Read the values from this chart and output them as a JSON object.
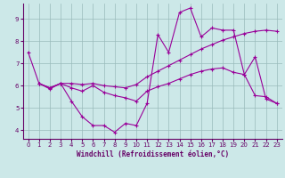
{
  "xlabel": "Windchill (Refroidissement éolien,°C)",
  "background_color": "#cce8e8",
  "line_color": "#990099",
  "grid_color": "#99bbbb",
  "xlim": [
    -0.5,
    23.5
  ],
  "ylim": [
    3.6,
    9.7
  ],
  "yticks": [
    4,
    5,
    6,
    7,
    8,
    9
  ],
  "xticks": [
    0,
    1,
    2,
    3,
    4,
    5,
    6,
    7,
    8,
    9,
    10,
    11,
    12,
    13,
    14,
    15,
    16,
    17,
    18,
    19,
    20,
    21,
    22,
    23
  ],
  "line1_x": [
    0,
    1,
    2,
    3,
    4,
    5,
    6,
    7,
    8,
    9,
    10,
    11,
    12,
    13,
    14,
    15,
    16,
    17,
    18,
    19,
    20,
    21,
    22,
    23
  ],
  "line1_y": [
    7.5,
    6.1,
    5.9,
    6.1,
    5.3,
    4.6,
    4.2,
    4.2,
    3.9,
    4.3,
    4.2,
    5.2,
    8.3,
    7.5,
    9.3,
    9.5,
    8.2,
    8.6,
    8.5,
    8.5,
    6.5,
    7.3,
    5.4,
    5.2
  ],
  "line2_x": [
    1,
    2,
    3,
    4,
    5,
    6,
    7,
    8,
    9,
    10,
    11,
    12,
    13,
    14,
    15,
    16,
    17,
    18,
    19,
    20,
    21,
    22,
    23
  ],
  "line2_y": [
    6.1,
    5.9,
    6.1,
    6.1,
    6.05,
    6.1,
    6.0,
    5.95,
    5.9,
    6.05,
    6.4,
    6.65,
    6.9,
    7.15,
    7.4,
    7.65,
    7.85,
    8.05,
    8.2,
    8.35,
    8.45,
    8.5,
    8.45
  ],
  "line3_x": [
    1,
    2,
    3,
    4,
    5,
    6,
    7,
    8,
    9,
    10,
    11,
    12,
    13,
    14,
    15,
    16,
    17,
    18,
    19,
    20,
    21,
    22,
    23
  ],
  "line3_y": [
    6.1,
    5.85,
    6.1,
    5.9,
    5.75,
    6.0,
    5.7,
    5.55,
    5.45,
    5.3,
    5.75,
    5.95,
    6.1,
    6.3,
    6.5,
    6.65,
    6.75,
    6.8,
    6.6,
    6.5,
    5.55,
    5.5,
    5.2
  ]
}
